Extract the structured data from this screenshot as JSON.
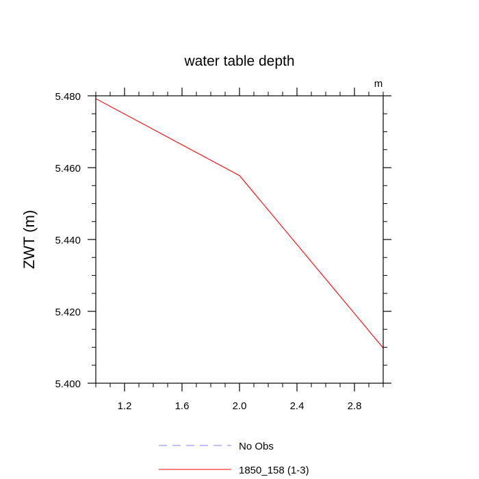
{
  "chart_data": {
    "type": "line",
    "title": "water table depth",
    "units_label": "m",
    "xlabel": "",
    "ylabel": "ZWT  (m)",
    "xlim": [
      1.0,
      3.0
    ],
    "ylim": [
      5.4,
      5.48
    ],
    "x_ticks": [
      1.2,
      1.6,
      2.0,
      2.4,
      2.8
    ],
    "x_tick_labels": [
      "1.2",
      "1.6",
      "2.0",
      "2.4",
      "2.8"
    ],
    "y_ticks": [
      5.4,
      5.42,
      5.44,
      5.46,
      5.48
    ],
    "y_tick_labels": [
      "5.400",
      "5.420",
      "5.440",
      "5.460",
      "5.480"
    ],
    "grid": false,
    "legend_position": "bottom-center",
    "series": [
      {
        "name": "No Obs",
        "color": "#8080ff",
        "dash": "dashed",
        "x": [],
        "y": []
      },
      {
        "name": "1850_158 (1-3)",
        "color": "#ff0000",
        "dash": "solid",
        "x": [
          1.0,
          2.0,
          3.0
        ],
        "y": [
          5.4792,
          5.4578,
          5.4098
        ]
      }
    ]
  }
}
